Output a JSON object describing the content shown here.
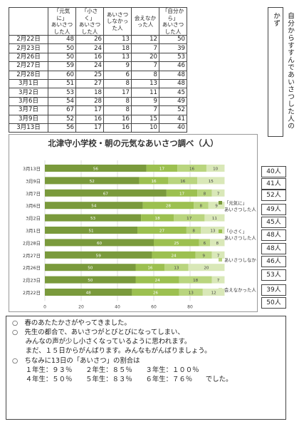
{
  "table": {
    "headers": [
      "",
      "「元気に」\nあいさつした人",
      "「小さく」\nあいさつした人",
      "あいさつ\nしなかった人",
      "会えなかった人",
      "「自分から」\nあいさつした人"
    ],
    "rows": [
      {
        "date": "2月22日",
        "vals": [
          "48",
          "26",
          "13",
          "12",
          "50"
        ]
      },
      {
        "date": "2月23日",
        "vals": [
          "50",
          "24",
          "18",
          "7",
          "39"
        ]
      },
      {
        "date": "2月26日",
        "vals": [
          "50",
          "16",
          "13",
          "20",
          "53"
        ]
      },
      {
        "date": "2月27日",
        "vals": [
          "59",
          "24",
          "9",
          "7",
          "46"
        ]
      },
      {
        "date": "2月28日",
        "vals": [
          "60",
          "25",
          "6",
          "8",
          "48"
        ]
      },
      {
        "date": "3月1日",
        "vals": [
          "51",
          "27",
          "8",
          "13",
          "48"
        ]
      },
      {
        "date": "3月2日",
        "vals": [
          "53",
          "18",
          "17",
          "11",
          "45"
        ]
      },
      {
        "date": "3月6日",
        "vals": [
          "54",
          "28",
          "8",
          "9",
          "49"
        ]
      },
      {
        "date": "3月7日",
        "vals": [
          "67",
          "17",
          "8",
          "7",
          "52"
        ]
      },
      {
        "date": "3月9日",
        "vals": [
          "52",
          "16",
          "16",
          "15",
          "41"
        ]
      },
      {
        "date": "3月13日",
        "vals": [
          "56",
          "17",
          "16",
          "10",
          "40"
        ]
      }
    ]
  },
  "question": "自分からすすんであいさつした人のかず",
  "answers": [
    "40人",
    "41人",
    "52人",
    "49人",
    "45人",
    "48人",
    "48人",
    "46人",
    "53人",
    "39人",
    "50人"
  ],
  "chart_data": {
    "type": "bar",
    "orientation": "horizontal",
    "stacked": true,
    "title": "北津守小学校・朝の元気なあいさつ調べ（人）",
    "categories": [
      "3月13日",
      "3月9日",
      "3月7日",
      "3月6日",
      "3月2日",
      "3月1日",
      "2月28日",
      "2月27日",
      "2月26日",
      "2月23日",
      "2月22日"
    ],
    "series": [
      {
        "name": "「元気に」あいさつした人",
        "values": [
          56,
          52,
          67,
          54,
          53,
          51,
          60,
          59,
          50,
          50,
          48
        ],
        "color": "#7a9a3c"
      },
      {
        "name": "「小さく」あいさつした人",
        "values": [
          17,
          16,
          17,
          28,
          18,
          27,
          25,
          24,
          16,
          24,
          26
        ],
        "color": "#9cc050"
      },
      {
        "name": "あいさつしなかった人",
        "values": [
          16,
          16,
          8,
          8,
          17,
          8,
          6,
          9,
          13,
          18,
          13
        ],
        "color": "#b9d57e"
      },
      {
        "name": "会えなかった人",
        "values": [
          10,
          15,
          7,
          9,
          11,
          13,
          8,
          7,
          20,
          7,
          12
        ],
        "color": "#d9e8b8"
      }
    ],
    "xticks": [
      "0",
      "20",
      "40",
      "60",
      "80"
    ],
    "xlim": [
      0,
      100
    ],
    "legend": "right"
  },
  "message": {
    "lines": [
      "○　春のあたたかさがやってきました。",
      "○　先生の都合で、あいさつがとびとびになってしまい、",
      "　　みんなの声が少し小さくなっているように思われます。",
      "　　まだ、１５日からがんばります。みんなもがんばりましょう。",
      "○　ちなみに13日の「あいさつ」の割合は",
      "　　１年生：９３％　　２年生：８５％　　３年生：１００％",
      "　　４年生：５０％　　５年生：８３％　　６年生：７６％　　でした。"
    ]
  }
}
